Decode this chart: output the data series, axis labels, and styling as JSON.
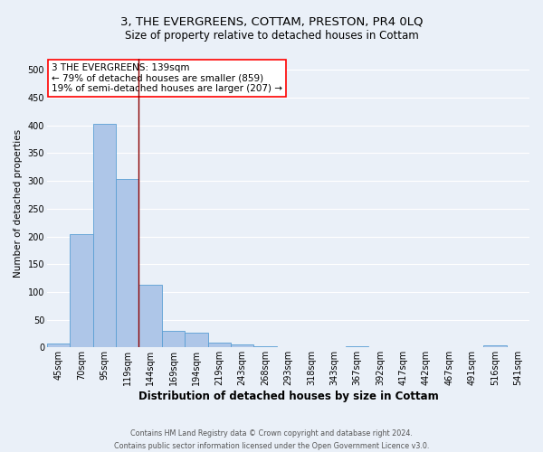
{
  "title": "3, THE EVERGREENS, COTTAM, PRESTON, PR4 0LQ",
  "subtitle": "Size of property relative to detached houses in Cottam",
  "xlabel": "Distribution of detached houses by size in Cottam",
  "ylabel": "Number of detached properties",
  "footer_line1": "Contains HM Land Registry data © Crown copyright and database right 2024.",
  "footer_line2": "Contains public sector information licensed under the Open Government Licence v3.0.",
  "bin_labels": [
    "45sqm",
    "70sqm",
    "95sqm",
    "119sqm",
    "144sqm",
    "169sqm",
    "194sqm",
    "219sqm",
    "243sqm",
    "268sqm",
    "293sqm",
    "318sqm",
    "343sqm",
    "367sqm",
    "392sqm",
    "417sqm",
    "442sqm",
    "467sqm",
    "491sqm",
    "516sqm",
    "541sqm"
  ],
  "bar_heights": [
    8,
    204,
    403,
    303,
    113,
    30,
    27,
    9,
    6,
    2,
    1,
    1,
    0,
    3,
    0,
    0,
    0,
    0,
    0,
    4,
    0
  ],
  "bar_color": "#aec6e8",
  "bar_edge_color": "#5a9fd4",
  "red_line_x": 3.5,
  "annotation_text": "3 THE EVERGREENS: 139sqm\n← 79% of detached houses are smaller (859)\n19% of semi-detached houses are larger (207) →",
  "annotation_box_color": "white",
  "annotation_box_edge_color": "red",
  "ylim": [
    0,
    520
  ],
  "yticks": [
    0,
    50,
    100,
    150,
    200,
    250,
    300,
    350,
    400,
    450,
    500
  ],
  "bg_color": "#eaf0f8",
  "grid_color": "white",
  "title_fontsize": 9.5,
  "subtitle_fontsize": 8.5,
  "xlabel_fontsize": 8.5,
  "ylabel_fontsize": 7.5,
  "tick_fontsize": 7,
  "annotation_fontsize": 7.5,
  "footer_fontsize": 5.8
}
